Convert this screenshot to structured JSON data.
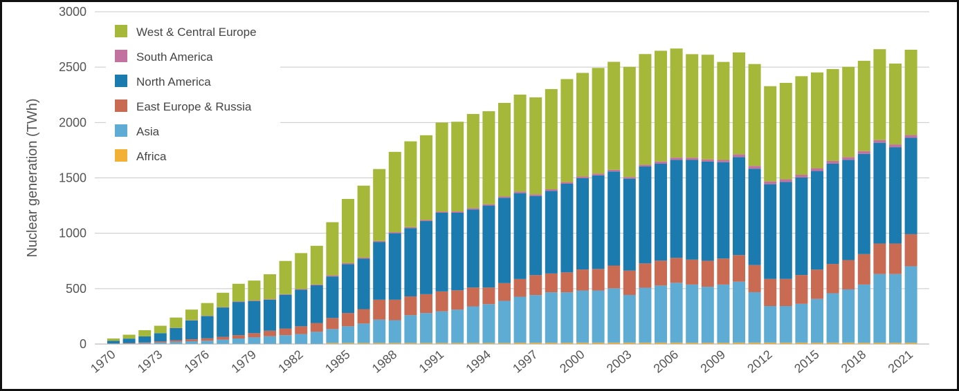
{
  "chart_data": {
    "type": "bar",
    "stacked": true,
    "title": "",
    "xlabel": "",
    "ylabel": "Nuclear generation (TWh)",
    "ylim": [
      0,
      3000
    ],
    "yticks": [
      0,
      500,
      1000,
      1500,
      2000,
      2500,
      3000
    ],
    "grid": true,
    "legend_position": "top-left",
    "categories": [
      "1970",
      "1971",
      "1972",
      "1973",
      "1974",
      "1975",
      "1976",
      "1977",
      "1978",
      "1979",
      "1980",
      "1981",
      "1982",
      "1983",
      "1984",
      "1985",
      "1986",
      "1987",
      "1988",
      "1989",
      "1990",
      "1991",
      "1992",
      "1993",
      "1994",
      "1995",
      "1996",
      "1997",
      "1998",
      "1999",
      "2000",
      "2001",
      "2002",
      "2003",
      "2004",
      "2005",
      "2006",
      "2007",
      "2008",
      "2009",
      "2010",
      "2011",
      "2012",
      "2013",
      "2014",
      "2015",
      "2016",
      "2017",
      "2018",
      "2019",
      "2020",
      "2021"
    ],
    "x_tick_labels": [
      "1970",
      "1973",
      "1976",
      "1979",
      "1982",
      "1985",
      "1988",
      "1991",
      "1994",
      "1997",
      "2000",
      "2003",
      "2006",
      "2009",
      "2012",
      "2015",
      "2018",
      "2021"
    ],
    "series": [
      {
        "name": "Africa",
        "color": "#f2b134",
        "values": [
          0,
          0,
          0,
          0,
          0,
          0,
          0,
          0,
          0,
          0,
          0,
          0,
          0,
          0,
          10,
          10,
          10,
          10,
          10,
          10,
          10,
          10,
          10,
          10,
          10,
          10,
          12,
          12,
          12,
          12,
          13,
          13,
          13,
          13,
          13,
          13,
          13,
          12,
          12,
          12,
          13,
          13,
          13,
          13,
          13,
          12,
          13,
          13,
          12,
          12,
          12,
          12
        ]
      },
      {
        "name": "Asia",
        "color": "#5eacd3",
        "values": [
          3,
          5,
          8,
          13,
          20,
          25,
          30,
          40,
          50,
          60,
          70,
          80,
          90,
          110,
          125,
          150,
          175,
          210,
          205,
          250,
          270,
          285,
          300,
          330,
          350,
          380,
          415,
          430,
          455,
          455,
          470,
          470,
          490,
          430,
          495,
          515,
          540,
          525,
          505,
          525,
          550,
          455,
          330,
          330,
          350,
          395,
          445,
          480,
          525,
          620,
          620,
          690
        ]
      },
      {
        "name": "East Europe & Russia",
        "color": "#c96a52",
        "values": [
          2,
          4,
          6,
          10,
          14,
          18,
          22,
          25,
          30,
          38,
          50,
          60,
          70,
          80,
          100,
          120,
          130,
          180,
          185,
          170,
          170,
          180,
          175,
          170,
          150,
          160,
          160,
          180,
          170,
          180,
          190,
          195,
          205,
          220,
          220,
          225,
          225,
          225,
          235,
          235,
          240,
          245,
          245,
          245,
          260,
          265,
          265,
          265,
          275,
          275,
          275,
          290
        ]
      },
      {
        "name": "North America",
        "color": "#1b7bae",
        "values": [
          25,
          40,
          55,
          75,
          110,
          170,
          200,
          265,
          300,
          290,
          280,
          305,
          330,
          340,
          375,
          440,
          455,
          520,
          600,
          615,
          660,
          710,
          700,
          705,
          740,
          770,
          775,
          715,
          745,
          800,
          825,
          845,
          850,
          830,
          875,
          875,
          885,
          900,
          895,
          870,
          885,
          870,
          855,
          875,
          880,
          890,
          905,
          905,
          905,
          910,
          870,
          870
        ]
      },
      {
        "name": "South America",
        "color": "#c1729e",
        "values": [
          0,
          0,
          0,
          0,
          2,
          3,
          3,
          3,
          4,
          5,
          5,
          5,
          6,
          7,
          10,
          10,
          10,
          10,
          10,
          10,
          10,
          10,
          12,
          12,
          12,
          12,
          15,
          15,
          15,
          15,
          15,
          15,
          15,
          15,
          15,
          20,
          20,
          20,
          20,
          20,
          25,
          25,
          25,
          25,
          25,
          25,
          25,
          25,
          25,
          25,
          25,
          25
        ]
      },
      {
        "name": "West & Central Europe",
        "color": "#a6b83a",
        "values": [
          20,
          35,
          56,
          67,
          93,
          95,
          115,
          130,
          160,
          180,
          225,
          300,
          325,
          350,
          480,
          580,
          650,
          650,
          725,
          775,
          765,
          805,
          810,
          850,
          840,
          845,
          875,
          875,
          905,
          930,
          935,
          955,
          975,
          995,
          1000,
          1000,
          985,
          935,
          945,
          885,
          920,
          920,
          860,
          870,
          890,
          865,
          830,
          815,
          815,
          820,
          730,
          770
        ]
      }
    ]
  }
}
